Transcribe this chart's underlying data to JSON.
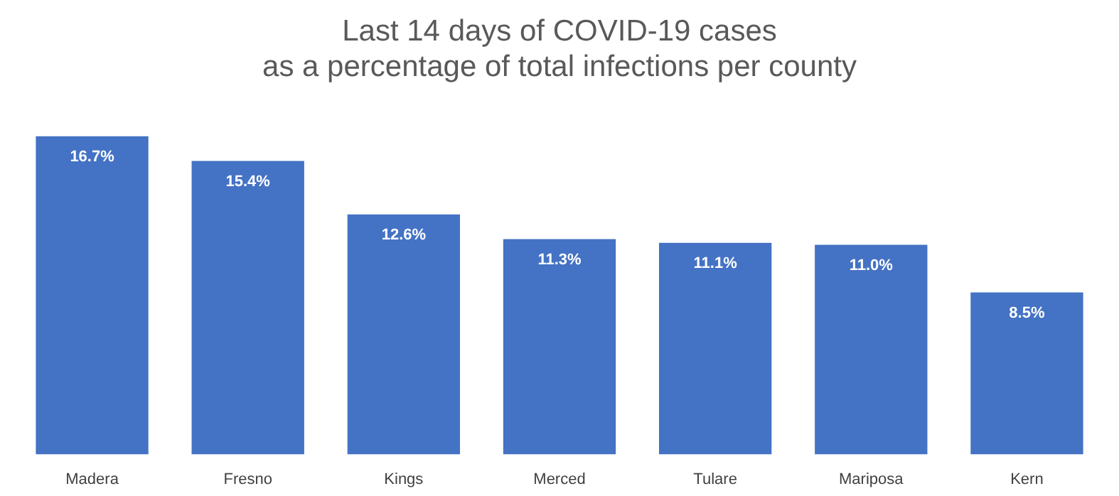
{
  "chart_data": {
    "type": "bar",
    "title": [
      "Last 14 days of COVID-19 cases",
      "as a percentage of total infections per county"
    ],
    "categories": [
      "Madera",
      "Fresno",
      "Kings",
      "Merced",
      "Tulare",
      "Mariposa",
      "Kern"
    ],
    "values": [
      16.7,
      15.4,
      12.6,
      11.3,
      11.1,
      11.0,
      8.5
    ],
    "value_labels": [
      "16.7%",
      "15.4%",
      "12.6%",
      "11.3%",
      "11.1%",
      "11.0%",
      "8.5%"
    ],
    "color": "#4472c4",
    "grid": false,
    "legend": false,
    "tick_labels": "x"
  }
}
